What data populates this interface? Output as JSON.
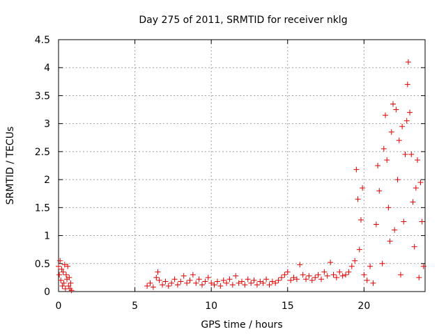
{
  "chart_data": {
    "type": "scatter",
    "title": "Day 275 of 2011, SRMTID for receiver nklg",
    "xlabel": "GPS time / hours",
    "ylabel": "SRMTID / TECUs",
    "xlim": [
      0,
      24
    ],
    "ylim": [
      0,
      4.5
    ],
    "x_ticks": [
      0,
      5,
      10,
      15,
      20
    ],
    "x_tick_labels": [
      "0",
      "5",
      "10",
      "15",
      "20"
    ],
    "y_ticks": [
      0,
      0.5,
      1,
      1.5,
      2,
      2.5,
      3,
      3.5,
      4,
      4.5
    ],
    "y_tick_labels": [
      "0",
      "0.5",
      "1",
      "1.5",
      "2",
      "2.5",
      "3",
      "3.5",
      "4",
      "4.5"
    ],
    "grid": true,
    "marker": "plus",
    "color": "#e00000",
    "series": [
      {
        "name": "SRMTID",
        "points": [
          [
            0.0,
            0.45
          ],
          [
            0.05,
            0.3
          ],
          [
            0.1,
            0.55
          ],
          [
            0.15,
            0.2
          ],
          [
            0.2,
            0.4
          ],
          [
            0.25,
            0.1
          ],
          [
            0.3,
            0.35
          ],
          [
            0.35,
            0.15
          ],
          [
            0.4,
            0.48
          ],
          [
            0.45,
            0.05
          ],
          [
            0.5,
            0.3
          ],
          [
            0.55,
            0.22
          ],
          [
            0.6,
            0.45
          ],
          [
            0.65,
            0.1
          ],
          [
            0.7,
            0.25
          ],
          [
            0.75,
            0.05
          ],
          [
            0.8,
            0.15
          ],
          [
            0.85,
            0.02
          ],
          [
            5.8,
            0.1
          ],
          [
            6.0,
            0.15
          ],
          [
            6.2,
            0.08
          ],
          [
            6.4,
            0.25
          ],
          [
            6.5,
            0.35
          ],
          [
            6.6,
            0.2
          ],
          [
            6.8,
            0.12
          ],
          [
            7.0,
            0.18
          ],
          [
            7.2,
            0.1
          ],
          [
            7.4,
            0.15
          ],
          [
            7.6,
            0.22
          ],
          [
            7.8,
            0.12
          ],
          [
            8.0,
            0.18
          ],
          [
            8.2,
            0.28
          ],
          [
            8.4,
            0.15
          ],
          [
            8.6,
            0.2
          ],
          [
            8.8,
            0.3
          ],
          [
            9.0,
            0.15
          ],
          [
            9.2,
            0.22
          ],
          [
            9.4,
            0.12
          ],
          [
            9.6,
            0.18
          ],
          [
            9.8,
            0.25
          ],
          [
            10.0,
            0.15
          ],
          [
            10.2,
            0.12
          ],
          [
            10.4,
            0.18
          ],
          [
            10.6,
            0.1
          ],
          [
            10.8,
            0.2
          ],
          [
            11.0,
            0.15
          ],
          [
            11.2,
            0.22
          ],
          [
            11.4,
            0.12
          ],
          [
            11.6,
            0.28
          ],
          [
            11.8,
            0.15
          ],
          [
            12.0,
            0.18
          ],
          [
            12.2,
            0.12
          ],
          [
            12.4,
            0.22
          ],
          [
            12.6,
            0.15
          ],
          [
            12.8,
            0.2
          ],
          [
            13.0,
            0.12
          ],
          [
            13.2,
            0.18
          ],
          [
            13.4,
            0.15
          ],
          [
            13.6,
            0.22
          ],
          [
            13.8,
            0.12
          ],
          [
            14.0,
            0.18
          ],
          [
            14.2,
            0.15
          ],
          [
            14.4,
            0.2
          ],
          [
            14.6,
            0.25
          ],
          [
            14.8,
            0.3
          ],
          [
            15.0,
            0.35
          ],
          [
            15.2,
            0.2
          ],
          [
            15.4,
            0.25
          ],
          [
            15.6,
            0.22
          ],
          [
            15.8,
            0.48
          ],
          [
            16.0,
            0.3
          ],
          [
            16.2,
            0.22
          ],
          [
            16.4,
            0.28
          ],
          [
            16.6,
            0.2
          ],
          [
            16.8,
            0.25
          ],
          [
            17.0,
            0.3
          ],
          [
            17.2,
            0.22
          ],
          [
            17.4,
            0.35
          ],
          [
            17.6,
            0.28
          ],
          [
            17.8,
            0.52
          ],
          [
            18.0,
            0.3
          ],
          [
            18.2,
            0.25
          ],
          [
            18.4,
            0.35
          ],
          [
            18.6,
            0.28
          ],
          [
            18.8,
            0.3
          ],
          [
            19.0,
            0.35
          ],
          [
            19.2,
            0.45
          ],
          [
            19.4,
            0.55
          ],
          [
            19.5,
            2.18
          ],
          [
            19.6,
            1.65
          ],
          [
            19.7,
            0.75
          ],
          [
            19.8,
            1.28
          ],
          [
            19.9,
            1.85
          ],
          [
            20.0,
            0.3
          ],
          [
            20.2,
            0.2
          ],
          [
            20.4,
            0.45
          ],
          [
            20.6,
            0.15
          ],
          [
            20.8,
            1.2
          ],
          [
            20.9,
            2.25
          ],
          [
            21.0,
            1.8
          ],
          [
            21.2,
            0.5
          ],
          [
            21.3,
            2.55
          ],
          [
            21.4,
            3.15
          ],
          [
            21.5,
            2.35
          ],
          [
            21.6,
            1.5
          ],
          [
            21.7,
            0.9
          ],
          [
            21.8,
            2.85
          ],
          [
            21.9,
            3.35
          ],
          [
            22.0,
            1.1
          ],
          [
            22.1,
            3.25
          ],
          [
            22.2,
            2.0
          ],
          [
            22.3,
            2.7
          ],
          [
            22.4,
            0.3
          ],
          [
            22.5,
            2.95
          ],
          [
            22.6,
            1.25
          ],
          [
            22.7,
            2.45
          ],
          [
            22.8,
            3.05
          ],
          [
            22.85,
            3.7
          ],
          [
            22.9,
            4.1
          ],
          [
            23.0,
            3.2
          ],
          [
            23.1,
            2.45
          ],
          [
            23.2,
            1.6
          ],
          [
            23.3,
            0.8
          ],
          [
            23.4,
            1.85
          ],
          [
            23.5,
            2.35
          ],
          [
            23.6,
            0.25
          ],
          [
            23.7,
            1.95
          ],
          [
            23.8,
            1.25
          ],
          [
            23.9,
            0.45
          ]
        ]
      }
    ]
  }
}
